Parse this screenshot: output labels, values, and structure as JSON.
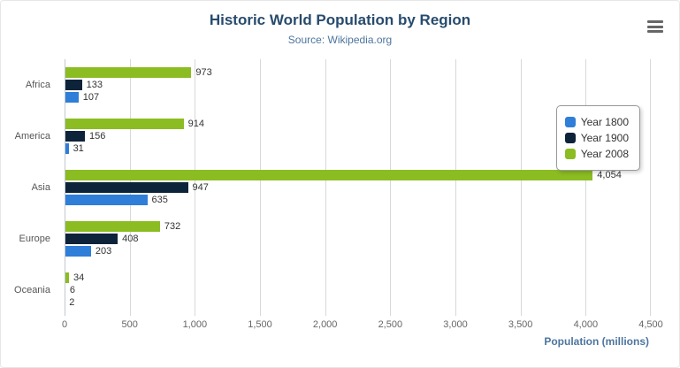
{
  "chart_data": {
    "type": "bar",
    "orientation": "horizontal",
    "title": "Historic World Population by Region",
    "subtitle": "Source: Wikipedia.org",
    "categories": [
      "Africa",
      "America",
      "Asia",
      "Europe",
      "Oceania"
    ],
    "series": [
      {
        "name": "Year 1800",
        "color": "#2f7ed8",
        "values": [
          107,
          31,
          635,
          203,
          2
        ]
      },
      {
        "name": "Year 1900",
        "color": "#0d233a",
        "values": [
          133,
          156,
          947,
          408,
          6
        ]
      },
      {
        "name": "Year 2008",
        "color": "#8bbc21",
        "values": [
          973,
          914,
          4054,
          732,
          34
        ]
      }
    ],
    "bar_order_top_to_bottom": [
      "Year 2008",
      "Year 1900",
      "Year 1800"
    ],
    "value_axis": {
      "title": "Population (millions)",
      "min": 0,
      "max": 4500,
      "ticks": [
        0,
        500,
        1000,
        1500,
        2000,
        2500,
        3000,
        3500,
        4000,
        4500
      ]
    },
    "legend": {
      "position": "right",
      "entries": [
        "Year 1800",
        "Year 1900",
        "Year 2008"
      ]
    },
    "grid": true,
    "data_labels": true
  },
  "export_menu": {
    "icon": "hamburger-menu-icon"
  }
}
